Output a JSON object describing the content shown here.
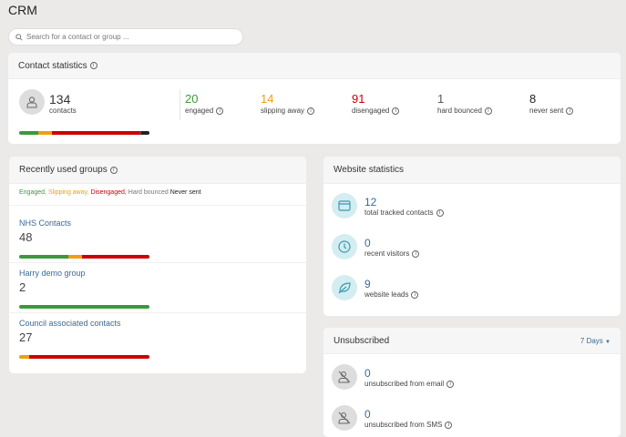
{
  "app": {
    "title": "CRM"
  },
  "search": {
    "placeholder": "Search for a contact or group ..."
  },
  "contact_stats": {
    "title": "Contact statistics",
    "total": {
      "value": "134",
      "label": "contacts"
    },
    "items": [
      {
        "value": "20",
        "label": "engaged",
        "color": "#3a9a3a"
      },
      {
        "value": "14",
        "label": "slipping away",
        "color": "#f39c12"
      },
      {
        "value": "91",
        "label": "disengaged",
        "color": "#cc0000"
      },
      {
        "value": "1",
        "label": "hard bounced",
        "color": "#555555"
      },
      {
        "value": "8",
        "label": "never sent",
        "color": "#222222"
      }
    ]
  },
  "groups": {
    "title": "Recently used groups",
    "legend": [
      "Engaged,",
      "Slipping away,",
      "Disengaged,",
      "Hard bounced",
      "Never sent"
    ],
    "items": [
      {
        "name": "NHS Contacts",
        "count": "48",
        "bar": {
          "engaged": 38,
          "slipping": 10,
          "disengaged": 52,
          "bounced": 0,
          "never": 0
        }
      },
      {
        "name": "Harry demo group",
        "count": "2",
        "bar": {
          "engaged": 100,
          "slipping": 0,
          "disengaged": 0,
          "bounced": 0,
          "never": 0
        }
      },
      {
        "name": "Council associated contacts",
        "count": "27",
        "bar": {
          "engaged": 0,
          "slipping": 8,
          "disengaged": 92,
          "bounced": 0,
          "never": 0
        }
      }
    ]
  },
  "website": {
    "title": "Website statistics",
    "items": [
      {
        "value": "12",
        "label": "total tracked contacts",
        "icon": "browser-icon"
      },
      {
        "value": "0",
        "label": "recent visitors",
        "icon": "clock-icon"
      },
      {
        "value": "9",
        "label": "website leads",
        "icon": "leaf-icon"
      }
    ]
  },
  "unsubscribed": {
    "title": "Unsubscribed",
    "period": "7 Days",
    "items": [
      {
        "value": "0",
        "label": "unsubscribed from email"
      },
      {
        "value": "0",
        "label": "unsubscribed from SMS"
      }
    ]
  }
}
